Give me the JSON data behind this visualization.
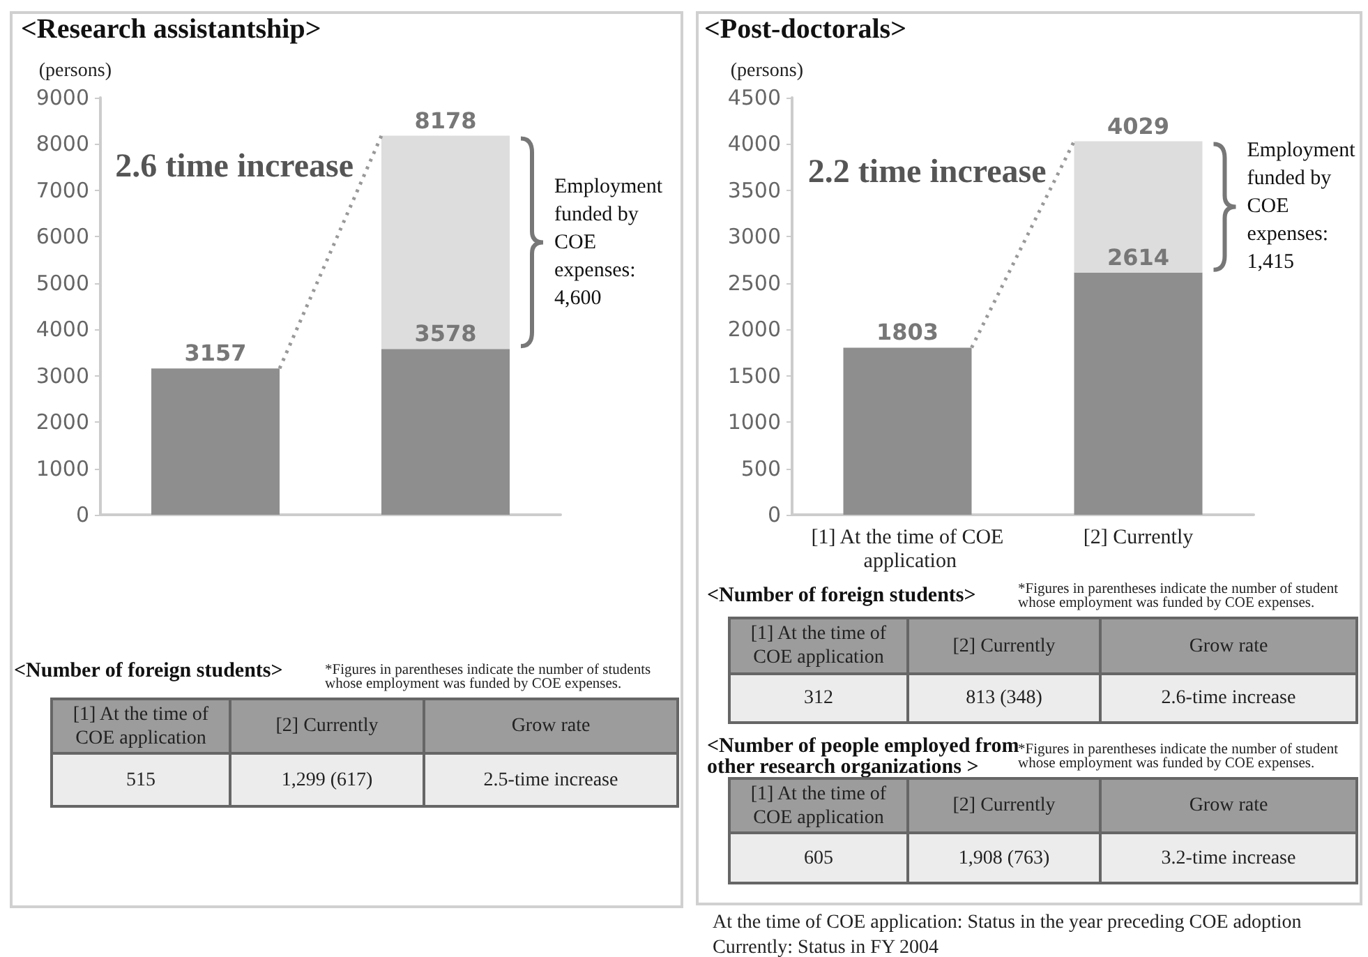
{
  "chart_data": [
    {
      "type": "bar",
      "title": "<Research assistantship>",
      "ylabel": "(persons)",
      "categories": [
        null,
        null
      ],
      "stacked": true,
      "series": [
        {
          "color": "#8e8e8e",
          "values": [
            3157,
            3578
          ],
          "value_labels": [
            "3157",
            "3578"
          ]
        },
        {
          "color": "#dddddd",
          "values": [
            null,
            4600
          ]
        }
      ],
      "totals": [
        null,
        "8178"
      ],
      "ylim": [
        0,
        9000
      ],
      "yticks": [
        0,
        1000,
        2000,
        3000,
        4000,
        5000,
        6000,
        7000,
        8000,
        9000
      ],
      "annotations": [
        "2.6 time increase",
        "Employment funded by COE expenses: 4,600"
      ]
    },
    {
      "type": "other",
      "title": "<Number of foreign students>",
      "subtitle": "*Figures in parentheses indicate the number of students whose employment was funded by COE expenses.",
      "categories": [
        "[1] At the time of COE application",
        "[2] Currently",
        "Grow rate"
      ],
      "cell_labels": [
        [
          "515",
          "1,299 (617)",
          "2.5-time increase"
        ]
      ]
    },
    {
      "type": "bar",
      "title": "<Post-doctorals>",
      "ylabel": "(persons)",
      "categories": [
        "[1] At the time of COE application",
        "[2] Currently"
      ],
      "stacked": true,
      "series": [
        {
          "color": "#8e8e8e",
          "values": [
            1803,
            2614
          ],
          "value_labels": [
            "1803",
            "2614"
          ]
        },
        {
          "color": "#dddddd",
          "values": [
            null,
            1415
          ]
        }
      ],
      "totals": [
        null,
        "4029"
      ],
      "ylim": [
        0,
        4500
      ],
      "yticks": [
        0,
        500,
        1000,
        1500,
        2000,
        2500,
        3000,
        3500,
        4000,
        4500
      ],
      "annotations": [
        "2.2 time increase",
        "Employment funded by COE expenses: 1,415"
      ]
    },
    {
      "type": "other",
      "title": "<Number of foreign students>",
      "subtitle": "*Figures in parentheses indicate the number of student whose employment was funded by COE expenses.",
      "categories": [
        "[1] At the time of COE application",
        "[2] Currently",
        "Grow rate"
      ],
      "cell_labels": [
        [
          "312",
          "813 (348)",
          "2.6-time increase"
        ]
      ]
    },
    {
      "type": "other",
      "title": "<Number of people employed from other research organizations >",
      "subtitle": "*Figures in parentheses indicate the number of student whose employment was funded by COE expenses.",
      "categories": [
        "[1] At the time of COE application",
        "[2] Currently",
        "Grow rate"
      ],
      "cell_labels": [
        [
          "605",
          "1,908 (763)",
          "3.2-time increase"
        ]
      ],
      "annotations": [
        "At the time of COE application: Status in the year preceding COE adoption",
        "Currently: Status in FY 2004"
      ]
    }
  ]
}
